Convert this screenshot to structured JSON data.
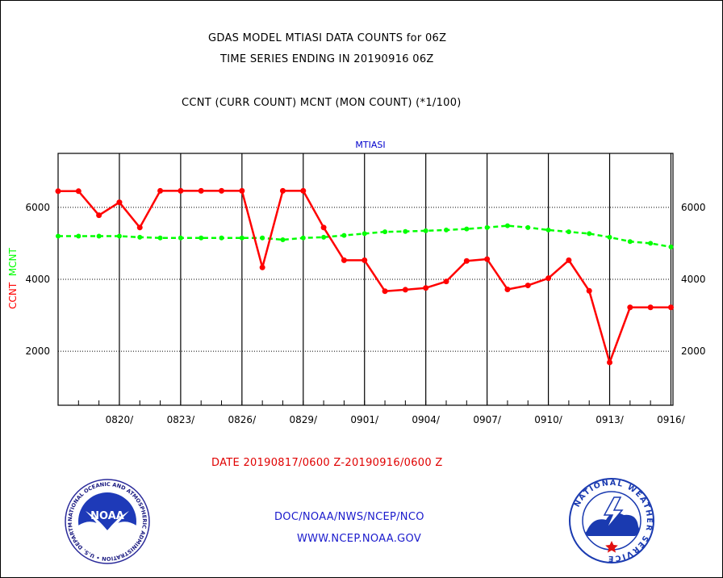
{
  "header": {
    "title_line1": "GDAS MODEL MTIASI DATA COUNTS for 06Z",
    "title_line2": "TIME SERIES ENDING IN 20190916 06Z",
    "subtitle": "CCNT (CURR COUNT) MCNT (MON COUNT) (*1/100)"
  },
  "footer": {
    "date_range": "DATE 20190817/0600 Z-20190916/0600 Z",
    "org": "DOC/NOAA/NWS/NCEP/NCO",
    "url": "WWW.NCEP.NOAA.GOV"
  },
  "logos": {
    "noaa_text": "NOAA",
    "noaa_ring": "NATIONAL OCEANIC AND ATMOSPHERIC ADMINISTRATION • U.S. DEPARTMENT OF COMMERCE •",
    "nws_ring": "NATIONAL WEATHER SERVICE"
  },
  "colors": {
    "ccnt": "#ff0000",
    "mcnt": "#00ff00",
    "title": "#0000cc",
    "text": "#000000"
  },
  "chart_data": {
    "type": "line",
    "title": "MTIASI",
    "ylabel_left_a": "CCNT",
    "ylabel_left_b": "MCNT",
    "ylim": [
      500,
      7500
    ],
    "yticks": [
      2000,
      4000,
      6000
    ],
    "ytick_labels": [
      "2000",
      "4000",
      "6000"
    ],
    "xlim": [
      0,
      30.1
    ],
    "xticks": [
      3,
      6,
      9,
      12,
      15,
      18,
      21,
      24,
      27,
      30
    ],
    "xtick_labels": [
      "0820/",
      "0823/",
      "0826/",
      "0829/",
      "0901/",
      "0904/",
      "0907/",
      "0910/",
      "0913/",
      "0916/"
    ],
    "grid": true,
    "series": [
      {
        "name": "CCNT",
        "color": "#ff0000",
        "style": "solid",
        "x": [
          0,
          1,
          2,
          3,
          4,
          5,
          6,
          7,
          8,
          9,
          10,
          11,
          12,
          13,
          14,
          15,
          16,
          17,
          18,
          19,
          20,
          21,
          22,
          23,
          24,
          25,
          26,
          27,
          28,
          29,
          30
        ],
        "values": [
          6450,
          6450,
          5780,
          6140,
          5440,
          6460,
          6460,
          6460,
          6460,
          6460,
          4330,
          6460,
          6460,
          5440,
          4530,
          4530,
          3670,
          3710,
          3760,
          3940,
          4510,
          4560,
          3720,
          3830,
          4030,
          4530,
          3680,
          1690,
          3220,
          3220,
          3220
        ]
      },
      {
        "name": "MCNT",
        "color": "#00ff00",
        "style": "dashed",
        "x": [
          0,
          1,
          2,
          3,
          4,
          5,
          6,
          7,
          8,
          9,
          10,
          11,
          12,
          13,
          14,
          15,
          16,
          17,
          18,
          19,
          20,
          21,
          22,
          23,
          24,
          25,
          26,
          27,
          28,
          29,
          30
        ],
        "values": [
          5200,
          5200,
          5200,
          5200,
          5170,
          5150,
          5150,
          5150,
          5150,
          5150,
          5150,
          5100,
          5150,
          5170,
          5220,
          5270,
          5320,
          5330,
          5350,
          5370,
          5400,
          5440,
          5490,
          5440,
          5370,
          5320,
          5270,
          5170,
          5050,
          5000,
          4900
        ]
      }
    ]
  }
}
